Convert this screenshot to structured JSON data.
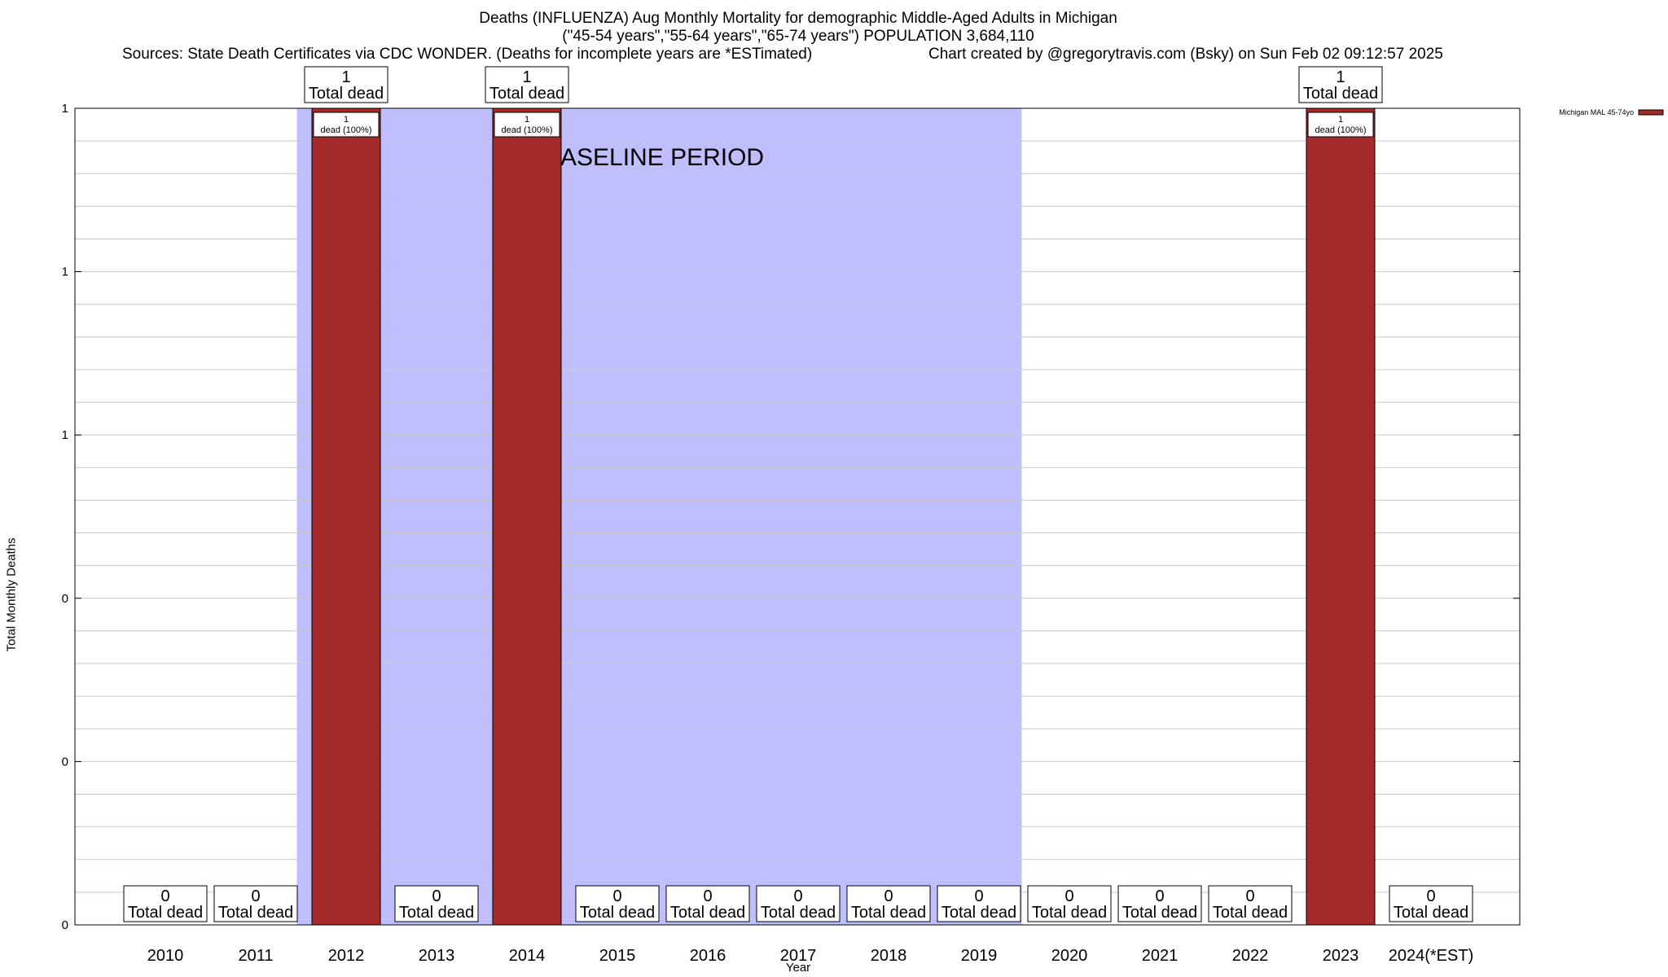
{
  "header": {
    "title_line1": "Deaths (INFLUENZA) Aug Monthly Mortality for demographic Middle-Aged Adults in Michigan",
    "title_line2": "(\"45-54 years\",\"55-64 years\",\"65-74 years\") POPULATION 3,684,110",
    "sources": "Sources: State Death Certificates via CDC WONDER. (Deaths for incomplete years are *ESTimated)",
    "credit": "Chart created by @gregorytravis.com (Bsky) on Sun Feb 02 09:12:57 2025"
  },
  "chart_data": {
    "type": "bar",
    "xlabel": "Year",
    "ylabel": "Total Monthly Deaths",
    "ylim": [
      0,
      1
    ],
    "y_tick_labels": [
      "0",
      "0",
      "0",
      "1",
      "1",
      "1"
    ],
    "categories": [
      "2010",
      "2011",
      "2012",
      "2013",
      "2014",
      "2015",
      "2016",
      "2017",
      "2018",
      "2019",
      "2020",
      "2021",
      "2022",
      "2023",
      "2024(*EST)"
    ],
    "series": [
      {
        "name": "Michigan MAL 45-74yo",
        "color": "#a52a2a",
        "values": [
          0,
          0,
          1,
          0,
          1,
          0,
          0,
          0,
          0,
          0,
          0,
          0,
          0,
          1,
          0
        ]
      }
    ],
    "total_label_suffix": "Total dead",
    "bar_inner_label_line1": "1",
    "bar_inner_label_line2": "dead (100%)",
    "annotation": {
      "text": "BASELINE PERIOD",
      "from_category": "2012",
      "to_category": "2019",
      "color": "#bfbfff"
    },
    "grid": true,
    "legend_position": "top-right"
  }
}
